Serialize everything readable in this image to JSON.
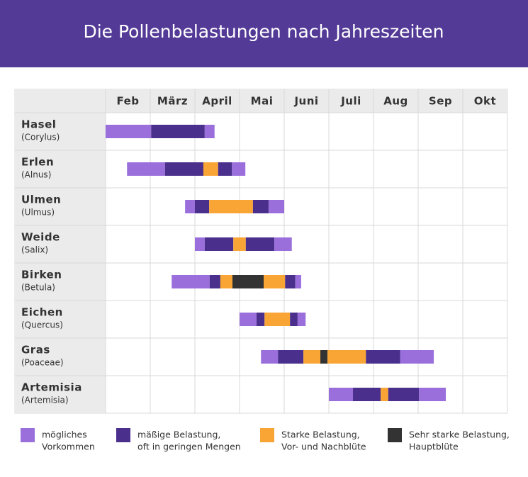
{
  "chart_data": {
    "type": "gantt",
    "title": "Die Pollenbelastungen nach Jahreszeiten",
    "categories": [
      "Feb",
      "März",
      "April",
      "Mai",
      "Juni",
      "Juli",
      "Aug",
      "Sep",
      "Okt"
    ],
    "xlim": [
      2,
      11
    ],
    "levels": [
      {
        "name": [
          "mögliches",
          "Vorkommen"
        ],
        "color": "#9a6fdc"
      },
      {
        "name": [
          "mäßige Belastung,",
          "oft in geringen Mengen"
        ],
        "color": "#4b2f8c"
      },
      {
        "name": [
          "Starke Belastung,",
          "Vor- und Nachblüte"
        ],
        "color": "#f9a535"
      },
      {
        "name": [
          "Sehr starke Belastung,",
          "Hauptblüte"
        ],
        "color": "#333333"
      }
    ],
    "rows": [
      {
        "name": "Hasel",
        "latin": "(Corylus)",
        "segments": [
          {
            "start": 2,
            "end": 3.02,
            "level": 0
          },
          {
            "start": 3.02,
            "end": 4.22,
            "level": 1
          },
          {
            "start": 4.22,
            "end": 4.44,
            "level": 0
          }
        ]
      },
      {
        "name": "Erlen",
        "latin": "(Alnus)",
        "segments": [
          {
            "start": 2.48,
            "end": 3.33,
            "level": 0
          },
          {
            "start": 3.33,
            "end": 4.19,
            "level": 1
          },
          {
            "start": 4.19,
            "end": 4.52,
            "level": 2
          },
          {
            "start": 4.52,
            "end": 4.83,
            "level": 1
          },
          {
            "start": 4.83,
            "end": 5.13,
            "level": 0
          }
        ]
      },
      {
        "name": "Ulmen",
        "latin": "(Ulmus)",
        "segments": [
          {
            "start": 3.78,
            "end": 4,
            "level": 0
          },
          {
            "start": 4,
            "end": 4.32,
            "level": 1
          },
          {
            "start": 4.32,
            "end": 5.3,
            "level": 2
          },
          {
            "start": 5.3,
            "end": 5.65,
            "level": 1
          },
          {
            "start": 5.65,
            "end": 6,
            "level": 0
          }
        ]
      },
      {
        "name": "Weide",
        "latin": "(Salix)",
        "segments": [
          {
            "start": 4,
            "end": 4.22,
            "level": 0
          },
          {
            "start": 4.22,
            "end": 4.86,
            "level": 1
          },
          {
            "start": 4.86,
            "end": 5.14,
            "level": 2
          },
          {
            "start": 5.14,
            "end": 5.78,
            "level": 1
          },
          {
            "start": 5.78,
            "end": 6.17,
            "level": 0
          }
        ]
      },
      {
        "name": "Birken",
        "latin": "(Betula)",
        "segments": [
          {
            "start": 3.48,
            "end": 4.33,
            "level": 0
          },
          {
            "start": 4.33,
            "end": 4.57,
            "level": 1
          },
          {
            "start": 4.57,
            "end": 4.84,
            "level": 2
          },
          {
            "start": 4.84,
            "end": 5.54,
            "level": 3
          },
          {
            "start": 5.54,
            "end": 6.02,
            "level": 2
          },
          {
            "start": 6.02,
            "end": 6.25,
            "level": 1
          },
          {
            "start": 6.25,
            "end": 6.38,
            "level": 0
          }
        ]
      },
      {
        "name": "Eichen",
        "latin": "(Quercus)",
        "segments": [
          {
            "start": 5,
            "end": 5.38,
            "level": 0
          },
          {
            "start": 5.38,
            "end": 5.56,
            "level": 1
          },
          {
            "start": 5.56,
            "end": 6.13,
            "level": 2
          },
          {
            "start": 6.13,
            "end": 6.3,
            "level": 1
          },
          {
            "start": 6.3,
            "end": 6.48,
            "level": 0
          }
        ]
      },
      {
        "name": "Gras",
        "latin": "(Poaceae)",
        "segments": [
          {
            "start": 5.48,
            "end": 5.86,
            "level": 0
          },
          {
            "start": 5.86,
            "end": 6.43,
            "level": 1
          },
          {
            "start": 6.43,
            "end": 6.81,
            "level": 2
          },
          {
            "start": 6.81,
            "end": 6.97,
            "level": 3
          },
          {
            "start": 6.97,
            "end": 7.83,
            "level": 2
          },
          {
            "start": 7.83,
            "end": 8.6,
            "level": 1
          },
          {
            "start": 8.6,
            "end": 9.35,
            "level": 0
          }
        ]
      },
      {
        "name": "Artemisia",
        "latin": "(Artemisia)",
        "segments": [
          {
            "start": 7,
            "end": 7.54,
            "level": 0
          },
          {
            "start": 7.54,
            "end": 8.16,
            "level": 1
          },
          {
            "start": 8.16,
            "end": 8.33,
            "level": 2
          },
          {
            "start": 8.33,
            "end": 9.02,
            "level": 1
          },
          {
            "start": 9.02,
            "end": 9.62,
            "level": 0
          }
        ]
      }
    ]
  }
}
